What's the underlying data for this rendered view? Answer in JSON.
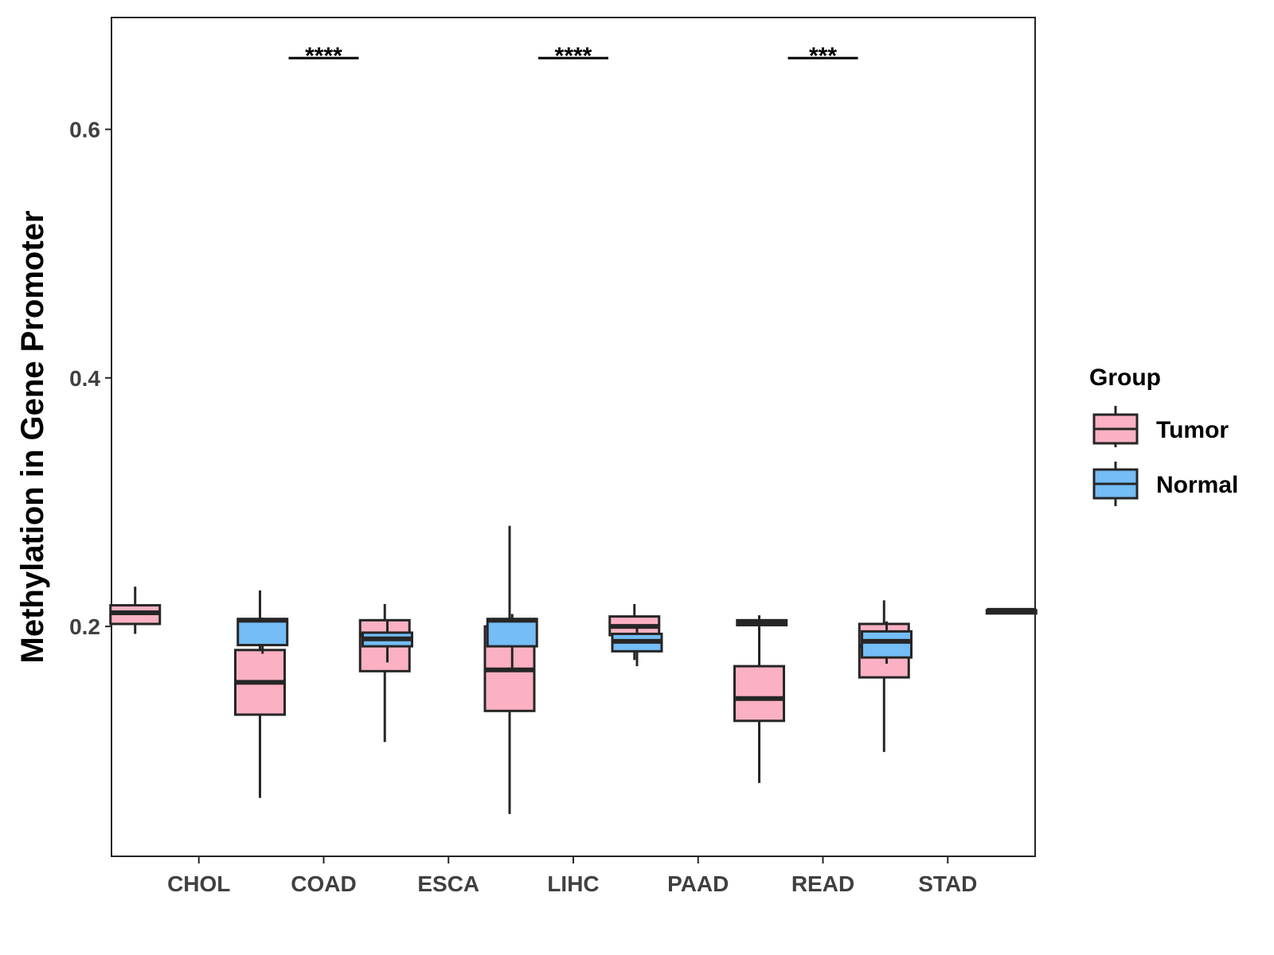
{
  "chart_data": {
    "type": "boxplot",
    "ylabel": "Methylation in Gene Promoter",
    "xlabel": "",
    "ylim": [
      0.015,
      0.69
    ],
    "yticks": [
      "0.2",
      "0.4",
      "0.6"
    ],
    "categories": [
      "CHOL",
      "COAD",
      "ESCA",
      "LIHC",
      "PAAD",
      "READ",
      "STAD"
    ],
    "legend": {
      "title": "Group",
      "position": "right",
      "entries": [
        {
          "name": "Tumor",
          "color": "#FBB1C3"
        },
        {
          "name": "Normal",
          "color": "#74BDF6"
        }
      ]
    },
    "series": [
      {
        "name": "Tumor",
        "color": "#FBB1C3",
        "boxes": [
          {
            "category": "CHOL",
            "min": 0.194,
            "q1": 0.202,
            "median": 0.211,
            "q3": 0.217,
            "max": 0.232
          },
          {
            "category": "COAD",
            "min": 0.062,
            "q1": 0.129,
            "median": 0.155,
            "q3": 0.181,
            "max": 0.229
          },
          {
            "category": "ESCA",
            "min": 0.107,
            "q1": 0.164,
            "median": 0.193,
            "q3": 0.205,
            "max": 0.218
          },
          {
            "category": "LIHC",
            "min": 0.049,
            "q1": 0.132,
            "median": 0.165,
            "q3": 0.2,
            "max": 0.281
          },
          {
            "category": "PAAD",
            "min": 0.173,
            "q1": 0.193,
            "median": 0.2,
            "q3": 0.208,
            "max": 0.218
          },
          {
            "category": "READ",
            "min": 0.074,
            "q1": 0.124,
            "median": 0.142,
            "q3": 0.168,
            "max": 0.209
          },
          {
            "category": "STAD",
            "min": 0.099,
            "q1": 0.159,
            "median": 0.184,
            "q3": 0.202,
            "max": 0.221
          }
        ]
      },
      {
        "name": "Normal",
        "color": "#74BDF6",
        "boxes": [
          {
            "category": "CHOL",
            "min": 0.178,
            "q1": 0.185,
            "median": 0.205,
            "q3": 0.206,
            "max": 0.207
          },
          {
            "category": "COAD",
            "min": 0.171,
            "q1": 0.184,
            "median": 0.19,
            "q3": 0.195,
            "max": 0.205
          },
          {
            "category": "ESCA",
            "min": 0.164,
            "q1": 0.184,
            "median": 0.205,
            "q3": 0.206,
            "max": 0.21
          },
          {
            "category": "LIHC",
            "min": 0.168,
            "q1": 0.18,
            "median": 0.188,
            "q3": 0.194,
            "max": 0.199
          },
          {
            "category": "PAAD",
            "min": 0.201,
            "q1": 0.201,
            "median": 0.203,
            "q3": 0.205,
            "max": 0.205
          },
          {
            "category": "READ",
            "min": 0.17,
            "q1": 0.175,
            "median": 0.188,
            "q3": 0.196,
            "max": 0.204
          },
          {
            "category": "STAD",
            "min": 0.212,
            "q1": 0.212,
            "median": 0.213,
            "q3": 0.213,
            "max": 0.213
          }
        ]
      }
    ],
    "significance": [
      {
        "category": "COAD",
        "label": "****"
      },
      {
        "category": "LIHC",
        "label": "****"
      },
      {
        "category": "READ",
        "label": "***"
      }
    ]
  },
  "colors": {
    "tumor": "#FBB1C3",
    "normal": "#74BDF6",
    "outline": "#262626",
    "axis_text": "#404040"
  }
}
